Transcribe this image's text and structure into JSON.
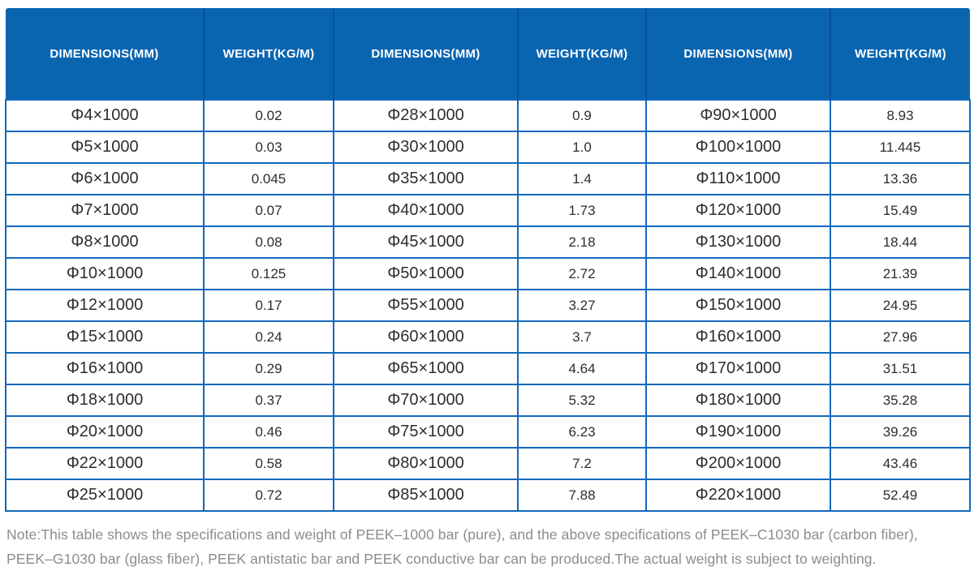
{
  "table": {
    "headers": [
      "DIMENSIONS(MM)",
      "WEIGHT(KG/M)",
      "DIMENSIONS(MM)",
      "WEIGHT(KG/M)",
      "DIMENSIONS(MM)",
      "WEIGHT(KG/M)"
    ],
    "rows": [
      [
        "Φ4×1000",
        "0.02",
        "Φ28×1000",
        "0.9",
        "Φ90×1000",
        "8.93"
      ],
      [
        "Φ5×1000",
        "0.03",
        "Φ30×1000",
        "1.0",
        "Φ100×1000",
        "11.445"
      ],
      [
        "Φ6×1000",
        "0.045",
        "Φ35×1000",
        "1.4",
        "Φ110×1000",
        "13.36"
      ],
      [
        "Φ7×1000",
        "0.07",
        "Φ40×1000",
        "1.73",
        "Φ120×1000",
        "15.49"
      ],
      [
        "Φ8×1000",
        "0.08",
        "Φ45×1000",
        "2.18",
        "Φ130×1000",
        "18.44"
      ],
      [
        "Φ10×1000",
        "0.125",
        "Φ50×1000",
        "2.72",
        "Φ140×1000",
        "21.39"
      ],
      [
        "Φ12×1000",
        "0.17",
        "Φ55×1000",
        "3.27",
        "Φ150×1000",
        "24.95"
      ],
      [
        "Φ15×1000",
        "0.24",
        "Φ60×1000",
        "3.7",
        "Φ160×1000",
        "27.96"
      ],
      [
        "Φ16×1000",
        "0.29",
        "Φ65×1000",
        "4.64",
        "Φ170×1000",
        "31.51"
      ],
      [
        "Φ18×1000",
        "0.37",
        "Φ70×1000",
        "5.32",
        "Φ180×1000",
        "35.28"
      ],
      [
        "Φ20×1000",
        "0.46",
        "Φ75×1000",
        "6.23",
        "Φ190×1000",
        "39.26"
      ],
      [
        "Φ22×1000",
        "0.58",
        "Φ80×1000",
        "7.2",
        "Φ200×1000",
        "43.46"
      ],
      [
        "Φ25×1000",
        "0.72",
        "Φ85×1000",
        "7.88",
        "Φ220×1000",
        "52.49"
      ]
    ]
  },
  "note": {
    "line1": "Note:This table shows the specifications and weight of PEEK–1000 bar (pure), and the above specifications of PEEK–C1030 bar (carbon fiber),",
    "line2": "PEEK–G1030 bar (glass fiber), PEEK antistatic bar and PEEK conductive bar can be produced.The actual weight is subject to weighting."
  },
  "colors": {
    "header_bg": "#0A65B0",
    "header_divider": "#07509E",
    "header_text": "#FFFFFF",
    "table_border": "#1268BE",
    "body_text": "#2D2D2D",
    "note_text": "#8C8C8C"
  }
}
